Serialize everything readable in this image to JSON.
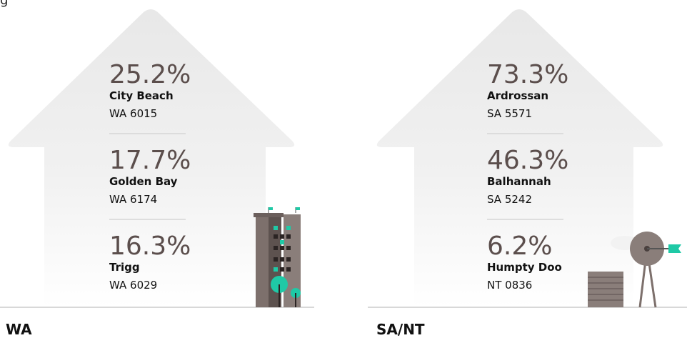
{
  "top_fragment": "g",
  "panels": [
    {
      "region": "WA",
      "entries": [
        {
          "percent": "25.2%",
          "suburb": "City Beach",
          "postcode": "WA 6015"
        },
        {
          "percent": "17.7%",
          "suburb": "Golden Bay",
          "postcode": "WA 6174"
        },
        {
          "percent": "16.3%",
          "suburb": "Trigg",
          "postcode": "WA 6029"
        }
      ]
    },
    {
      "region": "SA/NT",
      "entries": [
        {
          "percent": "73.3%",
          "suburb": "Ardrossan",
          "postcode": "SA 5571"
        },
        {
          "percent": "46.3%",
          "suburb": "Balhannah",
          "postcode": "SA 5242"
        },
        {
          "percent": "6.2%",
          "suburb": "Humpty Doo",
          "postcode": "NT 0836"
        }
      ]
    }
  ]
}
